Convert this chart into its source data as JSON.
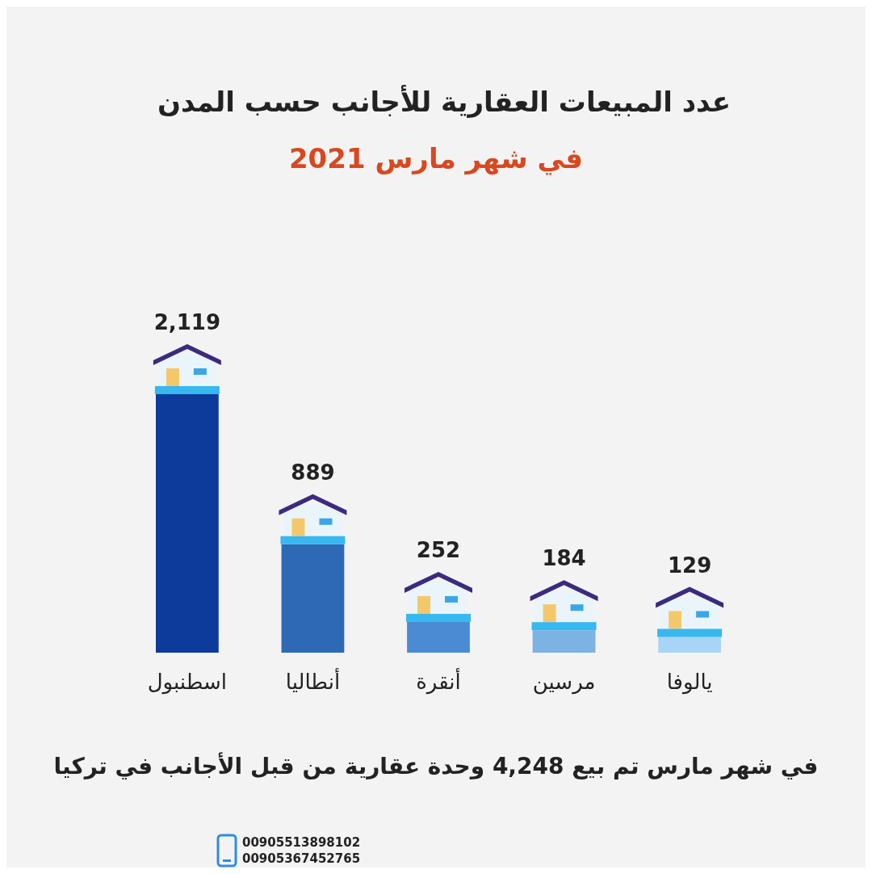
{
  "chart_data": {
    "type": "bar",
    "title": "عدد المبيعات العقارية للأجانب حسب المدن",
    "subtitle": "في شهر مارس 2021",
    "categories": [
      "اسطنبول",
      "أنطاليا",
      "أنقرة",
      "مرسين",
      "يالوفا"
    ],
    "values": [
      2119,
      889,
      252,
      184,
      129
    ],
    "colors": [
      "#0d3b9c",
      "#2e69b5",
      "#4a8bd3",
      "#7db2e4",
      "#a8d4f6"
    ],
    "value_labels": [
      "2,119",
      "889",
      "252",
      "184",
      "129"
    ],
    "annotations": [
      "في شهر مارس تم بيع 4,248 وحدة عقارية من قبل الأجانب في تركيا",
      "00905513898102",
      "00905367452765"
    ]
  }
}
